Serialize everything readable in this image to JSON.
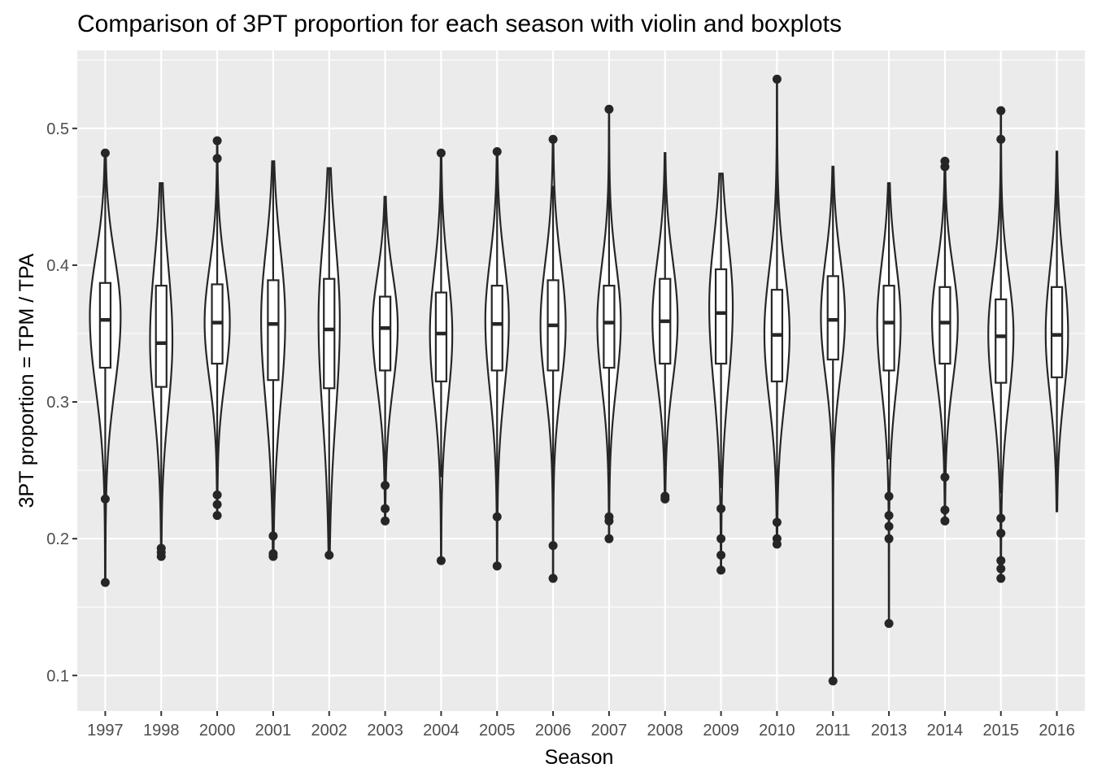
{
  "chart_data": {
    "type": "violin+boxplot",
    "title": "Comparison of 3PT proportion for each season with violin and boxplots",
    "xlabel": "Season",
    "ylabel": "3PT proportion = TPM / TPA",
    "ylim": [
      0.074,
      0.557
    ],
    "y_ticks": [
      0.1,
      0.2,
      0.3,
      0.4,
      0.5
    ],
    "y_tick_labels": [
      "0.1",
      "0.2",
      "0.3",
      "0.4",
      "0.5"
    ],
    "grid": true,
    "categories": [
      "1997",
      "1998",
      "2000",
      "2001",
      "2002",
      "2003",
      "2004",
      "2005",
      "2006",
      "2007",
      "2008",
      "2009",
      "2010",
      "2011",
      "2013",
      "2014",
      "2015",
      "2016"
    ],
    "colors": {
      "panel": "#ebebeb",
      "grid": "#ffffff",
      "ink": "#262626",
      "fill": "#ffffff",
      "tick_text": "#4d4d4d"
    },
    "series": [
      {
        "season": "1997",
        "min": 0.168,
        "max": 0.482,
        "q1": 0.325,
        "median": 0.36,
        "q3": 0.387,
        "whisker_low": 0.229,
        "whisker_high": 0.482,
        "outliers": [
          0.168,
          0.229,
          0.482
        ],
        "mode": 0.363,
        "max_width": 0.55
      },
      {
        "season": "1998",
        "min": 0.187,
        "max": 0.46,
        "q1": 0.311,
        "median": 0.343,
        "q3": 0.385,
        "whisker_low": 0.203,
        "whisker_high": 0.46,
        "outliers": [
          0.187,
          0.19,
          0.193
        ],
        "mode": 0.345,
        "max_width": 0.4
      },
      {
        "season": "2000",
        "min": 0.217,
        "max": 0.491,
        "q1": 0.328,
        "median": 0.358,
        "q3": 0.386,
        "whisker_low": 0.257,
        "whisker_high": 0.478,
        "outliers": [
          0.217,
          0.225,
          0.232,
          0.478,
          0.491
        ],
        "mode": 0.358,
        "max_width": 0.45
      },
      {
        "season": "2001",
        "min": 0.187,
        "max": 0.476,
        "q1": 0.316,
        "median": 0.357,
        "q3": 0.389,
        "whisker_low": 0.202,
        "whisker_high": 0.476,
        "outliers": [
          0.187,
          0.189,
          0.202
        ],
        "mode": 0.36,
        "max_width": 0.43
      },
      {
        "season": "2002",
        "min": 0.188,
        "max": 0.471,
        "q1": 0.31,
        "median": 0.353,
        "q3": 0.39,
        "whisker_low": 0.188,
        "whisker_high": 0.471,
        "outliers": [
          0.188
        ],
        "mode": 0.36,
        "max_width": 0.38
      },
      {
        "season": "2003",
        "min": 0.213,
        "max": 0.45,
        "q1": 0.323,
        "median": 0.354,
        "q3": 0.377,
        "whisker_low": 0.245,
        "whisker_high": 0.45,
        "outliers": [
          0.213,
          0.222,
          0.239
        ],
        "mode": 0.355,
        "max_width": 0.45
      },
      {
        "season": "2004",
        "min": 0.184,
        "max": 0.482,
        "q1": 0.315,
        "median": 0.35,
        "q3": 0.38,
        "whisker_low": 0.245,
        "whisker_high": 0.482,
        "outliers": [
          0.184,
          0.482
        ],
        "mode": 0.35,
        "max_width": 0.4
      },
      {
        "season": "2005",
        "min": 0.18,
        "max": 0.483,
        "q1": 0.323,
        "median": 0.357,
        "q3": 0.385,
        "whisker_low": 0.232,
        "whisker_high": 0.483,
        "outliers": [
          0.18,
          0.216,
          0.483
        ],
        "mode": 0.36,
        "max_width": 0.42
      },
      {
        "season": "2006",
        "min": 0.171,
        "max": 0.492,
        "q1": 0.323,
        "median": 0.356,
        "q3": 0.389,
        "whisker_low": 0.228,
        "whisker_high": 0.458,
        "outliers": [
          0.171,
          0.195,
          0.492
        ],
        "mode": 0.356,
        "max_width": 0.45
      },
      {
        "season": "2007",
        "min": 0.2,
        "max": 0.514,
        "q1": 0.325,
        "median": 0.358,
        "q3": 0.385,
        "whisker_low": 0.25,
        "whisker_high": 0.46,
        "outliers": [
          0.2,
          0.213,
          0.216,
          0.514
        ],
        "mode": 0.358,
        "max_width": 0.42
      },
      {
        "season": "2008",
        "min": 0.229,
        "max": 0.482,
        "q1": 0.328,
        "median": 0.359,
        "q3": 0.39,
        "whisker_low": 0.253,
        "whisker_high": 0.482,
        "outliers": [
          0.229,
          0.231
        ],
        "mode": 0.36,
        "max_width": 0.45
      },
      {
        "season": "2009",
        "min": 0.177,
        "max": 0.467,
        "q1": 0.328,
        "median": 0.365,
        "q3": 0.397,
        "whisker_low": 0.237,
        "whisker_high": 0.467,
        "outliers": [
          0.177,
          0.188,
          0.2,
          0.222
        ],
        "mode": 0.37,
        "max_width": 0.42
      },
      {
        "season": "2010",
        "min": 0.196,
        "max": 0.536,
        "q1": 0.315,
        "median": 0.349,
        "q3": 0.382,
        "whisker_low": 0.212,
        "whisker_high": 0.48,
        "outliers": [
          0.196,
          0.2,
          0.212,
          0.536
        ],
        "mode": 0.35,
        "max_width": 0.45
      },
      {
        "season": "2011",
        "min": 0.096,
        "max": 0.472,
        "q1": 0.331,
        "median": 0.36,
        "q3": 0.392,
        "whisker_low": 0.25,
        "whisker_high": 0.472,
        "outliers": [
          0.096
        ],
        "mode": 0.362,
        "max_width": 0.43
      },
      {
        "season": "2013",
        "min": 0.138,
        "max": 0.46,
        "q1": 0.323,
        "median": 0.358,
        "q3": 0.385,
        "whisker_low": 0.258,
        "whisker_high": 0.46,
        "outliers": [
          0.138,
          0.2,
          0.209,
          0.217,
          0.231
        ],
        "mode": 0.358,
        "max_width": 0.42
      },
      {
        "season": "2014",
        "min": 0.213,
        "max": 0.476,
        "q1": 0.328,
        "median": 0.358,
        "q3": 0.384,
        "whisker_low": 0.245,
        "whisker_high": 0.476,
        "outliers": [
          0.213,
          0.221,
          0.245,
          0.472,
          0.476
        ],
        "mode": 0.36,
        "max_width": 0.46
      },
      {
        "season": "2015",
        "min": 0.171,
        "max": 0.513,
        "q1": 0.314,
        "median": 0.348,
        "q3": 0.375,
        "whisker_low": 0.233,
        "whisker_high": 0.46,
        "outliers": [
          0.171,
          0.178,
          0.184,
          0.204,
          0.215,
          0.492,
          0.513
        ],
        "mode": 0.35,
        "max_width": 0.45
      },
      {
        "season": "2016",
        "min": 0.22,
        "max": 0.483,
        "q1": 0.318,
        "median": 0.349,
        "q3": 0.384,
        "whisker_low": 0.22,
        "whisker_high": 0.483,
        "outliers": [],
        "mode": 0.35,
        "max_width": 0.4
      }
    ]
  }
}
